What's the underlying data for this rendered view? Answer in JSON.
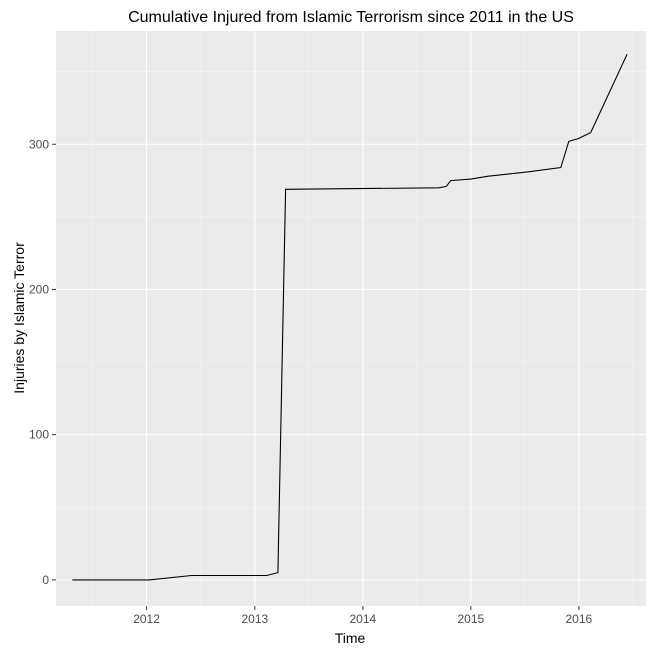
{
  "chart_data": {
    "type": "line",
    "title": "Cumulative Injured from Islamic Terrorism since 2011 in the US",
    "xlabel": "Time",
    "ylabel": "Injuries by Islamic Terror",
    "xlim": [
      "2011-03-01",
      "2016-08-15"
    ],
    "ylim": [
      -18,
      378
    ],
    "x_ticks": [
      {
        "value": "2012-01-01",
        "label": "2012"
      },
      {
        "value": "2013-01-01",
        "label": "2013"
      },
      {
        "value": "2014-01-01",
        "label": "2014"
      },
      {
        "value": "2015-01-01",
        "label": "2015"
      },
      {
        "value": "2016-01-01",
        "label": "2016"
      }
    ],
    "y_ticks": [
      {
        "value": 0,
        "label": "0"
      },
      {
        "value": 100,
        "label": "100"
      },
      {
        "value": 200,
        "label": "200"
      },
      {
        "value": 300,
        "label": "300"
      }
    ],
    "grid": true,
    "colors": {
      "panel_background": "#ebebeb",
      "grid_major": "#ffffff",
      "grid_minor": "#f5f5f5",
      "line": "#000000",
      "tick_text": "#4d4d4d"
    },
    "series": [
      {
        "points": [
          {
            "x": "2011-04-25",
            "y": 0
          },
          {
            "x": "2012-01-10",
            "y": 0
          },
          {
            "x": "2012-06-01",
            "y": 3
          },
          {
            "x": "2013-02-10",
            "y": 3
          },
          {
            "x": "2013-03-20",
            "y": 5
          },
          {
            "x": "2013-04-15",
            "y": 269
          },
          {
            "x": "2014-09-15",
            "y": 270
          },
          {
            "x": "2014-10-10",
            "y": 271
          },
          {
            "x": "2014-10-25",
            "y": 275
          },
          {
            "x": "2015-01-01",
            "y": 276
          },
          {
            "x": "2015-03-01",
            "y": 278
          },
          {
            "x": "2015-07-15",
            "y": 281
          },
          {
            "x": "2015-11-01",
            "y": 284
          },
          {
            "x": "2015-11-28",
            "y": 302
          },
          {
            "x": "2016-01-01",
            "y": 304
          },
          {
            "x": "2016-02-10",
            "y": 308
          },
          {
            "x": "2016-06-12",
            "y": 362
          }
        ]
      }
    ]
  }
}
